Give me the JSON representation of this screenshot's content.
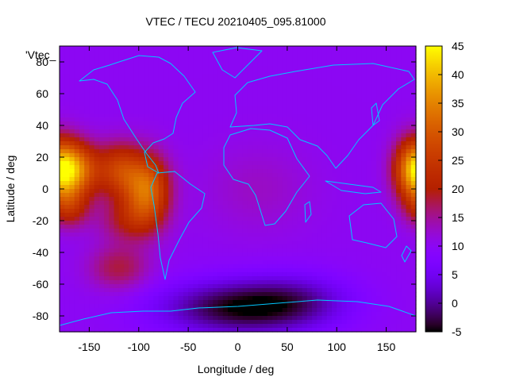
{
  "chart_data": {
    "type": "heatmap",
    "title": "VTEC / TECU 20210405_095.81000",
    "xlabel": "Longitude / deg",
    "ylabel": "Latitude / deg",
    "key_label": "'Vtec_",
    "xlim": [
      -180,
      180
    ],
    "ylim": [
      -90,
      90
    ],
    "xticks": [
      -150,
      -100,
      -50,
      0,
      50,
      100,
      150
    ],
    "yticks": [
      -80,
      -60,
      -40,
      -20,
      0,
      20,
      40,
      60,
      80
    ],
    "colorbar": {
      "min": -5,
      "max": 45,
      "ticks": [
        45,
        40,
        35,
        30,
        25,
        20,
        15,
        10,
        5,
        0,
        -5
      ],
      "palette": "gnuplot-rgbformulae-7-5-15"
    },
    "field_description": "Background VTEC about 10 TECU; equatorial anomaly crests near 28-40 TECU at lon -170, -120, -90 and 178; minimum near -5 TECU around lon 0, lat -75; overlay of continent outlines"
  }
}
